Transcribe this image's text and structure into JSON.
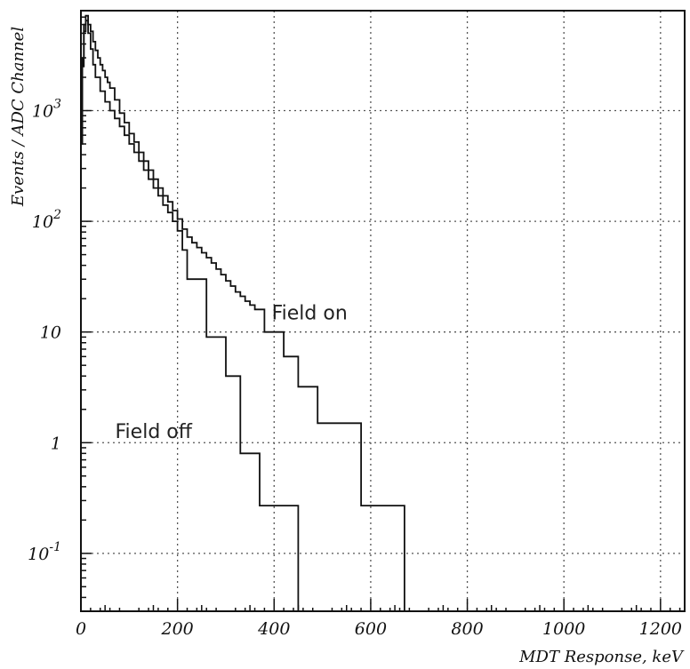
{
  "chart_data": {
    "type": "line",
    "xlabel": "MDT Response, keV",
    "ylabel": "Events / ADC Channel",
    "xlim": [
      0,
      1250
    ],
    "ylim": [
      0.03,
      8000
    ],
    "yscale": "log",
    "grid": true,
    "x_ticks": [
      {
        "value": 0,
        "label": "0"
      },
      {
        "value": 200,
        "label": "200"
      },
      {
        "value": 400,
        "label": "400"
      },
      {
        "value": 600,
        "label": "600"
      },
      {
        "value": 800,
        "label": "800"
      },
      {
        "value": 1000,
        "label": "1000"
      },
      {
        "value": 1200,
        "label": "1200"
      }
    ],
    "y_ticks": [
      {
        "value": 0.1,
        "base": "10",
        "exp": "-1"
      },
      {
        "value": 1,
        "base": "1",
        "exp": ""
      },
      {
        "value": 10,
        "base": "10",
        "exp": ""
      },
      {
        "value": 100,
        "base": "10",
        "exp": "2"
      },
      {
        "value": 1000,
        "base": "10",
        "exp": "3"
      }
    ],
    "annotations": [
      {
        "text": "Field on",
        "x": 395,
        "y": 13
      },
      {
        "text": "Field off",
        "x": 230,
        "y": 1.1
      }
    ],
    "series": [
      {
        "id": "field-on",
        "x": [
          0,
          3,
          6,
          10,
          15,
          20,
          25,
          30,
          35,
          40,
          45,
          50,
          55,
          60,
          70,
          80,
          90,
          100,
          110,
          120,
          130,
          140,
          150,
          160,
          170,
          180,
          190,
          200,
          210,
          220,
          230,
          240,
          250,
          260,
          270,
          280,
          290,
          300,
          310,
          320,
          330,
          340,
          350,
          360,
          380,
          420,
          450,
          490,
          520,
          580,
          670
        ],
        "y": [
          700,
          3000,
          6000,
          7200,
          6000,
          5200,
          4200,
          3500,
          3000,
          2600,
          2300,
          2000,
          1800,
          1600,
          1250,
          950,
          780,
          620,
          520,
          420,
          350,
          290,
          240,
          200,
          170,
          150,
          125,
          105,
          85,
          72,
          64,
          58,
          52,
          47,
          42,
          37,
          33,
          29,
          26,
          23,
          21,
          19,
          17.5,
          16,
          10,
          6,
          3.2,
          1.5,
          1.5,
          0.27,
          0.01
        ]
      },
      {
        "id": "field-off",
        "x": [
          0,
          3,
          6,
          10,
          15,
          20,
          25,
          30,
          40,
          50,
          60,
          70,
          80,
          90,
          100,
          110,
          120,
          130,
          140,
          150,
          160,
          170,
          180,
          190,
          200,
          210,
          220,
          260,
          300,
          330,
          370,
          380,
          450
        ],
        "y": [
          500,
          2500,
          5200,
          6500,
          5000,
          3600,
          2600,
          2000,
          1500,
          1200,
          1000,
          850,
          720,
          600,
          500,
          420,
          350,
          290,
          240,
          200,
          170,
          140,
          120,
          100,
          82,
          55,
          30,
          9,
          4,
          0.8,
          0.27,
          0.27,
          0.01
        ]
      }
    ]
  }
}
